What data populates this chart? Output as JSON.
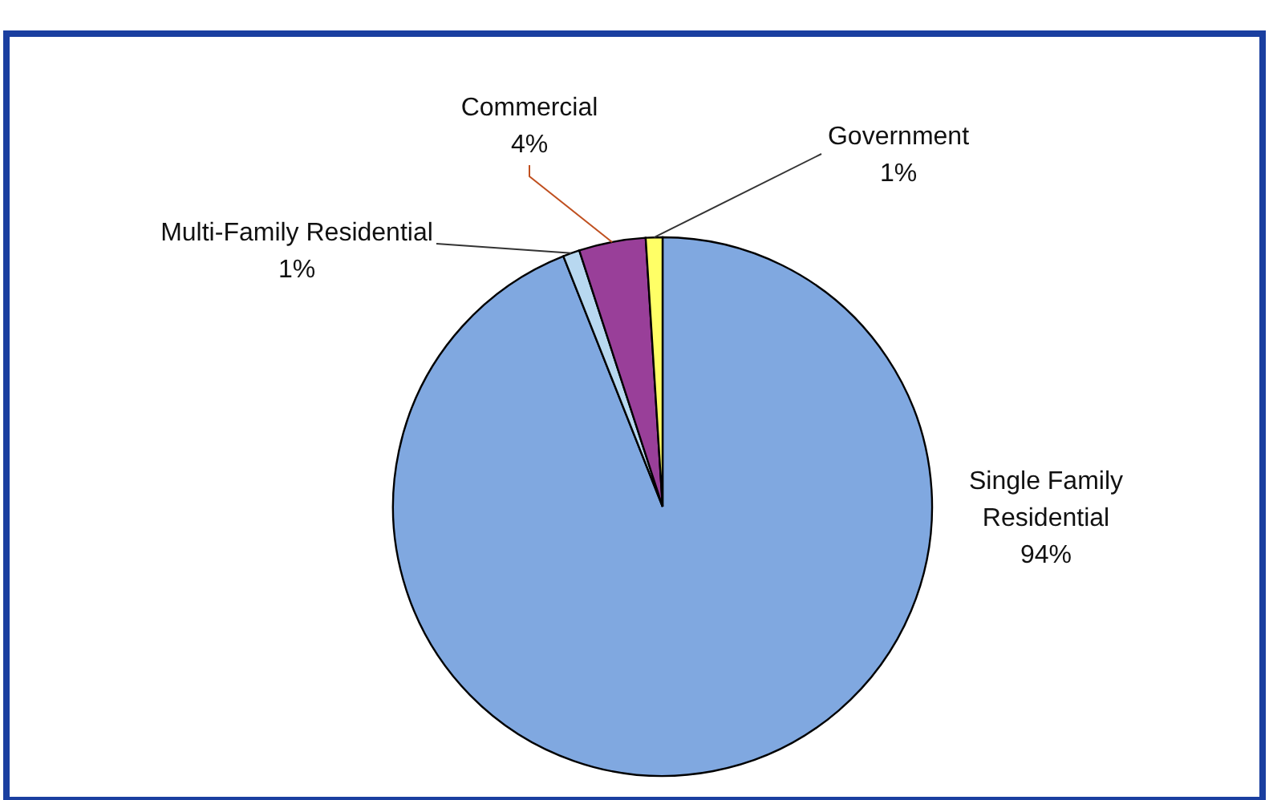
{
  "chart_data": {
    "type": "pie",
    "categories": [
      "Single Family Residential",
      "Multi-Family Residential",
      "Commercial",
      "Government"
    ],
    "values": [
      94,
      1,
      4,
      1
    ],
    "value_labels": [
      "94%",
      "1%",
      "4%",
      "1%"
    ],
    "colors": [
      "#80a8e0",
      "#b8d8f0",
      "#993f99",
      "#ffff66"
    ],
    "data_labels": true
  }
}
